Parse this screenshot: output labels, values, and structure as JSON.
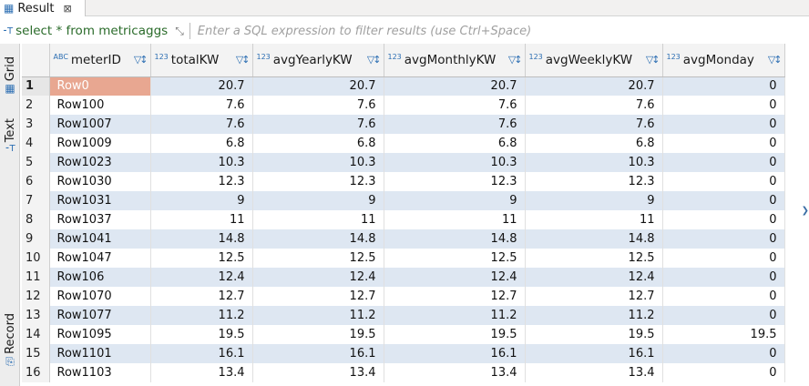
{
  "tab": {
    "label": "Result",
    "close": "⊠"
  },
  "query": {
    "label": "select * from metricaggs",
    "filter_placeholder": "Enter a SQL expression to filter results (use Ctrl+Space)"
  },
  "side": {
    "grid": "Grid",
    "text": "Text",
    "record": "Record"
  },
  "columns": [
    {
      "name": "meterID",
      "type": "ABC"
    },
    {
      "name": "totalKW",
      "type": "123"
    },
    {
      "name": "avgYearlyKW",
      "type": "123"
    },
    {
      "name": "avgMonthlyKW",
      "type": "123"
    },
    {
      "name": "avgWeeklyKW",
      "type": "123"
    },
    {
      "name": "avgMonday",
      "type": "123"
    }
  ],
  "rows": [
    {
      "n": "1",
      "cells": [
        "Row0",
        "20.7",
        "20.7",
        "20.7",
        "20.7",
        "0"
      ]
    },
    {
      "n": "2",
      "cells": [
        "Row100",
        "7.6",
        "7.6",
        "7.6",
        "7.6",
        "0"
      ]
    },
    {
      "n": "3",
      "cells": [
        "Row1007",
        "7.6",
        "7.6",
        "7.6",
        "7.6",
        "0"
      ]
    },
    {
      "n": "4",
      "cells": [
        "Row1009",
        "6.8",
        "6.8",
        "6.8",
        "6.8",
        "0"
      ]
    },
    {
      "n": "5",
      "cells": [
        "Row1023",
        "10.3",
        "10.3",
        "10.3",
        "10.3",
        "0"
      ]
    },
    {
      "n": "6",
      "cells": [
        "Row1030",
        "12.3",
        "12.3",
        "12.3",
        "12.3",
        "0"
      ]
    },
    {
      "n": "7",
      "cells": [
        "Row1031",
        "9",
        "9",
        "9",
        "9",
        "0"
      ]
    },
    {
      "n": "8",
      "cells": [
        "Row1037",
        "11",
        "11",
        "11",
        "11",
        "0"
      ]
    },
    {
      "n": "9",
      "cells": [
        "Row1041",
        "14.8",
        "14.8",
        "14.8",
        "14.8",
        "0"
      ]
    },
    {
      "n": "10",
      "cells": [
        "Row1047",
        "12.5",
        "12.5",
        "12.5",
        "12.5",
        "0"
      ]
    },
    {
      "n": "11",
      "cells": [
        "Row106",
        "12.4",
        "12.4",
        "12.4",
        "12.4",
        "0"
      ]
    },
    {
      "n": "12",
      "cells": [
        "Row1070",
        "12.7",
        "12.7",
        "12.7",
        "12.7",
        "0"
      ]
    },
    {
      "n": "13",
      "cells": [
        "Row1077",
        "11.2",
        "11.2",
        "11.2",
        "11.2",
        "0"
      ]
    },
    {
      "n": "14",
      "cells": [
        "Row1095",
        "19.5",
        "19.5",
        "19.5",
        "19.5",
        "19.5"
      ]
    },
    {
      "n": "15",
      "cells": [
        "Row1101",
        "16.1",
        "16.1",
        "16.1",
        "16.1",
        "0"
      ]
    },
    {
      "n": "16",
      "cells": [
        "Row1103",
        "13.4",
        "13.4",
        "13.4",
        "13.4",
        "0"
      ]
    }
  ],
  "colors": {
    "row_stripe": "#dee7f2",
    "selected_cell": "#e8a791",
    "accent": "#2d6fb3"
  }
}
